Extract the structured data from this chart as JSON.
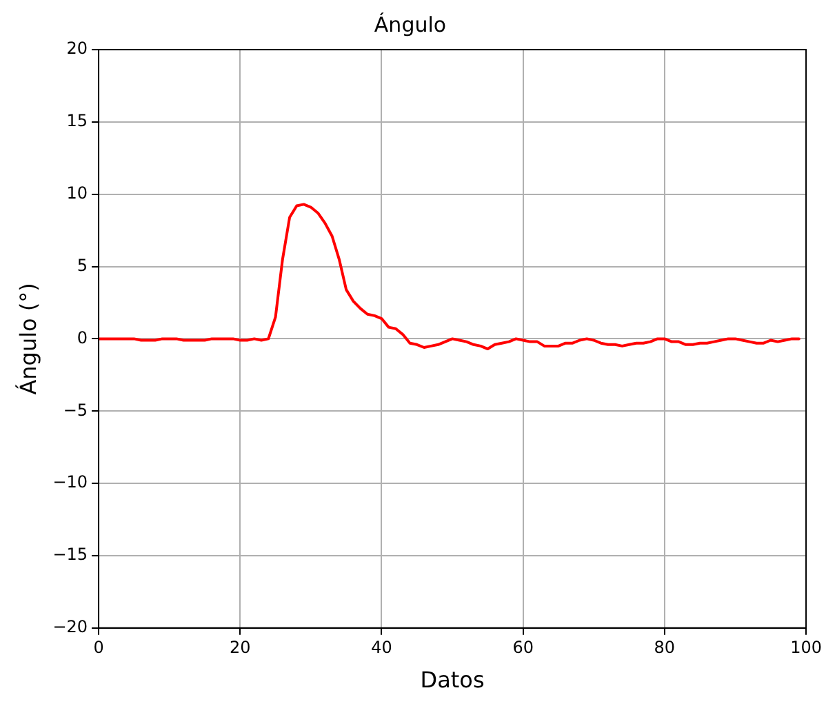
{
  "chart_data": {
    "type": "line",
    "title": "Ángulo",
    "xlabel": "Datos",
    "ylabel": "Ángulo (°)",
    "xlim": [
      0,
      100
    ],
    "xticks": [
      0,
      20,
      40,
      60,
      80,
      100
    ],
    "ylim": [
      -20,
      20
    ],
    "yticks": [
      -20,
      -15,
      -10,
      -5,
      0,
      5,
      10,
      15,
      20
    ],
    "grid": true,
    "legend": false,
    "x": [
      0,
      1,
      2,
      3,
      4,
      5,
      6,
      7,
      8,
      9,
      10,
      11,
      12,
      13,
      14,
      15,
      16,
      17,
      18,
      19,
      20,
      21,
      22,
      23,
      24,
      25,
      26,
      27,
      28,
      29,
      30,
      31,
      32,
      33,
      34,
      35,
      36,
      37,
      38,
      39,
      40,
      41,
      42,
      43,
      44,
      45,
      46,
      47,
      48,
      49,
      50,
      51,
      52,
      53,
      54,
      55,
      56,
      57,
      58,
      59,
      60,
      61,
      62,
      63,
      64,
      65,
      66,
      67,
      68,
      69,
      70,
      71,
      72,
      73,
      74,
      75,
      76,
      77,
      78,
      79,
      80,
      81,
      82,
      83,
      84,
      85,
      86,
      87,
      88,
      89,
      90,
      91,
      92,
      93,
      94,
      95,
      96,
      97,
      98,
      99
    ],
    "series": [
      {
        "color": "#ff0000",
        "values": [
          0,
          0,
          0,
          0,
          0,
          0,
          -0.1,
          -0.1,
          -0.1,
          0,
          0,
          0,
          -0.1,
          -0.1,
          -0.1,
          -0.1,
          0,
          0,
          0,
          0,
          -0.1,
          -0.1,
          0,
          -0.1,
          0,
          1.5,
          5.5,
          8.4,
          9.2,
          9.3,
          9.1,
          8.7,
          8.0,
          7.1,
          5.5,
          3.4,
          2.6,
          2.1,
          1.7,
          1.6,
          1.4,
          0.8,
          0.7,
          0.3,
          -0.3,
          -0.4,
          -0.6,
          -0.5,
          -0.4,
          -0.2,
          0,
          -0.1,
          -0.2,
          -0.4,
          -0.5,
          -0.7,
          -0.4,
          -0.3,
          -0.2,
          0,
          -0.1,
          -0.2,
          -0.2,
          -0.5,
          -0.5,
          -0.5,
          -0.3,
          -0.3,
          -0.1,
          0,
          -0.1,
          -0.3,
          -0.4,
          -0.4,
          -0.5,
          -0.4,
          -0.3,
          -0.3,
          -0.2,
          0,
          0,
          -0.2,
          -0.2,
          -0.4,
          -0.4,
          -0.3,
          -0.3,
          -0.2,
          -0.1,
          0,
          0,
          -0.1,
          -0.2,
          -0.3,
          -0.3,
          -0.1,
          -0.2,
          -0.1,
          0,
          0
        ]
      }
    ]
  }
}
